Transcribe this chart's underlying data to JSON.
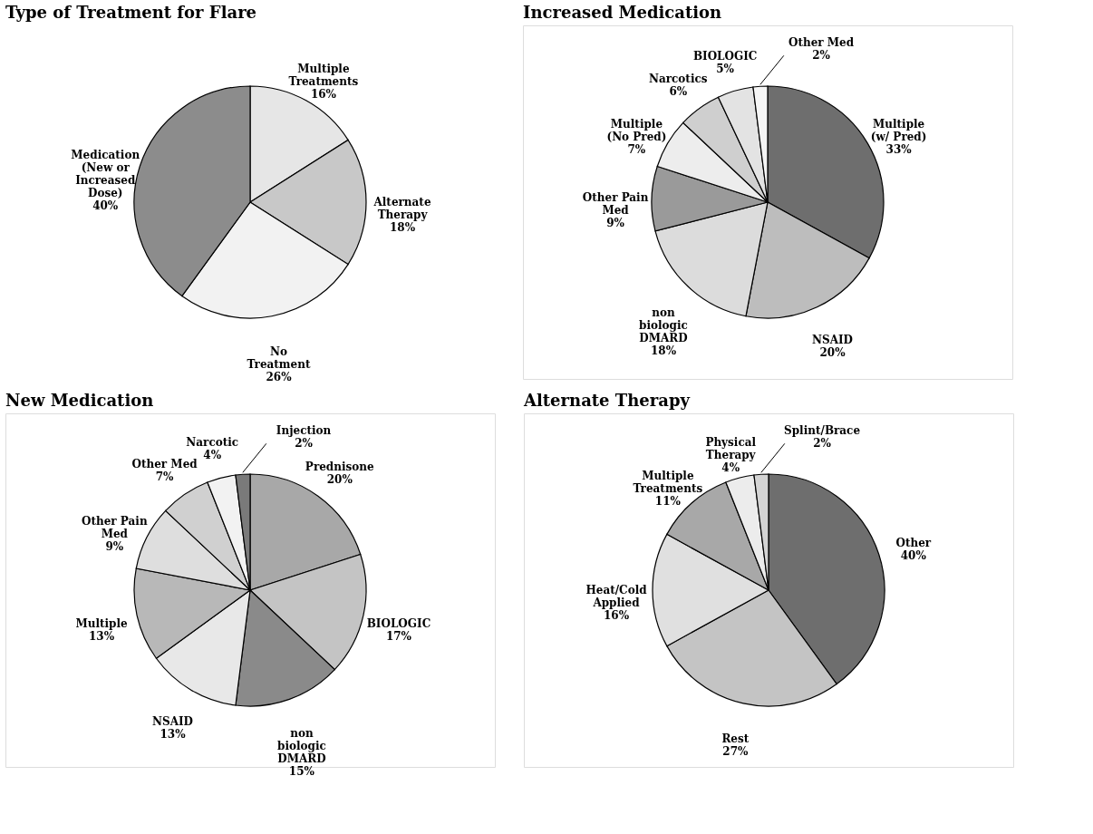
{
  "chart_data": [
    {
      "type": "pie",
      "title": "Type of Treatment for Flare",
      "categories": [
        "Multiple Treatments",
        "Alternate Therapy",
        "No Treatment",
        "Medication (New or Increased Dose)"
      ],
      "values": [
        16,
        18,
        26,
        40
      ],
      "value_labels": [
        "16%",
        "18%",
        "26%",
        "40%"
      ],
      "colors": [
        "#e6e6e6",
        "#c8c8c8",
        "#f2f2f2",
        "#8c8c8c"
      ]
    },
    {
      "type": "pie",
      "title": "Increased Medication",
      "categories": [
        "Multiple (w/ Pred)",
        "NSAID",
        "non biologic DMARD",
        "Other Pain Med",
        "Multiple (No Pred)",
        "Narcotics",
        "BIOLOGIC",
        "Other Med"
      ],
      "values": [
        33,
        20,
        18,
        9,
        7,
        6,
        5,
        2
      ],
      "value_labels": [
        "33%",
        "20%",
        "18%",
        "9%",
        "7%",
        "6%",
        "5%",
        "2%"
      ],
      "colors": [
        "#6e6e6e",
        "#bdbdbd",
        "#dcdcdc",
        "#9a9a9a",
        "#ededed",
        "#cfcfcf",
        "#e3e3e3",
        "#f5f5f5"
      ]
    },
    {
      "type": "pie",
      "title": "New Medication",
      "categories": [
        "Prednisone",
        "BIOLOGIC",
        "non biologic DMARD",
        "NSAID",
        "Multiple",
        "Other Pain Med",
        "Other Med",
        "Narcotic",
        "Injection"
      ],
      "values": [
        20,
        17,
        15,
        13,
        13,
        9,
        7,
        4,
        2
      ],
      "value_labels": [
        "20%",
        "17%",
        "15%",
        "13%",
        "13%",
        "9%",
        "7%",
        "4%",
        "2%"
      ],
      "colors": [
        "#a8a8a8",
        "#c4c4c4",
        "#8a8a8a",
        "#e8e8e8",
        "#b8b8b8",
        "#dedede",
        "#d0d0d0",
        "#f2f2f2",
        "#7a7a7a"
      ]
    },
    {
      "type": "pie",
      "title": "Alternate Therapy",
      "categories": [
        "Other",
        "Rest",
        "Heat/Cold Applied",
        "Multiple Treatments",
        "Physical Therapy",
        "Splint/Brace"
      ],
      "values": [
        40,
        27,
        16,
        11,
        4,
        2
      ],
      "value_labels": [
        "40%",
        "27%",
        "16%",
        "11%",
        "4%",
        "2%"
      ],
      "colors": [
        "#6e6e6e",
        "#c4c4c4",
        "#e0e0e0",
        "#a8a8a8",
        "#ececec",
        "#d4d4d4"
      ]
    }
  ]
}
